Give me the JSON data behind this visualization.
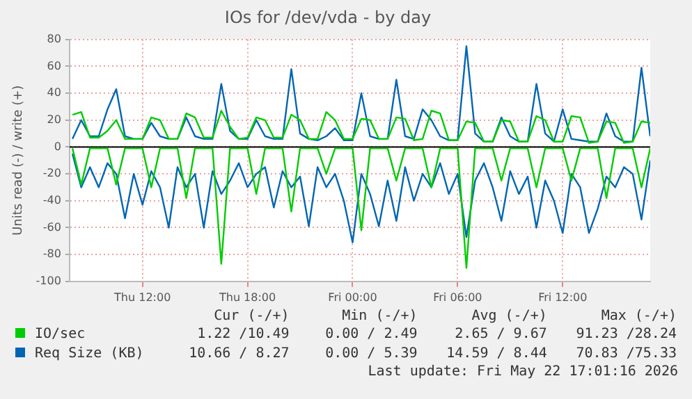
{
  "chart_data": {
    "type": "line",
    "title": "IOs for /dev/vda - by day",
    "ylabel": "Units read (-) / write (+)",
    "x": [
      "2026-05-21T08:00",
      "2026-05-21T08:30",
      "2026-05-21T09:00",
      "2026-05-21T09:30",
      "2026-05-21T10:00",
      "2026-05-21T10:30",
      "2026-05-21T11:00",
      "2026-05-21T11:30",
      "2026-05-21T12:00",
      "2026-05-21T12:30",
      "2026-05-21T13:00",
      "2026-05-21T13:30",
      "2026-05-21T14:00",
      "2026-05-21T14:30",
      "2026-05-21T15:00",
      "2026-05-21T15:30",
      "2026-05-21T16:00",
      "2026-05-21T16:30",
      "2026-05-21T17:00",
      "2026-05-21T17:30",
      "2026-05-21T18:00",
      "2026-05-21T18:30",
      "2026-05-21T19:00",
      "2026-05-21T19:30",
      "2026-05-21T20:00",
      "2026-05-21T20:30",
      "2026-05-21T21:00",
      "2026-05-21T21:30",
      "2026-05-21T22:00",
      "2026-05-21T22:30",
      "2026-05-21T23:00",
      "2026-05-21T23:30",
      "2026-05-22T00:00",
      "2026-05-22T00:30",
      "2026-05-22T01:00",
      "2026-05-22T01:30",
      "2026-05-22T02:00",
      "2026-05-22T02:30",
      "2026-05-22T03:00",
      "2026-05-22T03:30",
      "2026-05-22T04:00",
      "2026-05-22T04:30",
      "2026-05-22T05:00",
      "2026-05-22T05:30",
      "2026-05-22T06:00",
      "2026-05-22T06:30",
      "2026-05-22T07:00",
      "2026-05-22T07:30",
      "2026-05-22T08:00",
      "2026-05-22T08:30",
      "2026-05-22T09:00",
      "2026-05-22T09:30",
      "2026-05-22T10:00",
      "2026-05-22T10:30",
      "2026-05-22T11:00",
      "2026-05-22T11:30",
      "2026-05-22T12:00",
      "2026-05-22T12:30",
      "2026-05-22T13:00",
      "2026-05-22T13:30",
      "2026-05-22T14:00",
      "2026-05-22T14:30",
      "2026-05-22T15:00",
      "2026-05-22T15:30",
      "2026-05-22T16:00",
      "2026-05-22T16:30",
      "2026-05-22T17:00"
    ],
    "xlim": [
      "2026-05-21T07:50",
      "2026-05-22T17:00"
    ],
    "xticks": [
      {
        "value": "2026-05-21T12:00",
        "label": "Thu 12:00"
      },
      {
        "value": "2026-05-21T18:00",
        "label": "Thu 18:00"
      },
      {
        "value": "2026-05-22T00:00",
        "label": "Fri 00:00"
      },
      {
        "value": "2026-05-22T06:00",
        "label": "Fri 06:00"
      },
      {
        "value": "2026-05-22T12:00",
        "label": "Fri 12:00"
      }
    ],
    "ylim": [
      -100,
      80
    ],
    "yticks": [
      -100,
      -80,
      -60,
      -40,
      -20,
      0,
      20,
      40,
      60,
      80
    ],
    "grid": true,
    "legend": "bottom",
    "ref_lines": [
      {
        "axis": "y",
        "value": 0,
        "color": "#000000"
      }
    ],
    "series": [
      {
        "name": "IO/sec",
        "color": "#00cc00",
        "values": [
          24,
          26,
          7,
          7,
          12,
          20,
          6,
          6,
          6,
          22,
          20,
          6,
          6,
          25,
          22,
          7,
          7,
          27,
          15,
          6,
          7,
          22,
          20,
          7,
          7,
          24,
          20,
          6,
          6,
          26,
          20,
          6,
          6,
          21,
          20,
          6,
          6,
          22,
          21,
          5,
          6,
          27,
          25,
          5,
          5,
          19,
          18,
          4,
          4,
          20,
          19,
          4,
          4,
          23,
          20,
          4,
          4,
          23,
          22,
          3,
          4,
          19,
          18,
          3,
          4,
          19,
          18
        ]
      },
      {
        "color": "#00cc00",
        "values": [
          -1,
          -28,
          -1,
          -1,
          -1,
          -28,
          -1,
          -1,
          -1,
          -30,
          -1,
          -1,
          -1,
          -38,
          -1,
          -1,
          -1,
          -87,
          -1,
          -1,
          -1,
          -35,
          -1,
          -1,
          -1,
          -48,
          -1,
          -1,
          -1,
          -20,
          -1,
          -1,
          -1,
          -62,
          -1,
          -1,
          -1,
          -25,
          -1,
          -1,
          -1,
          -30,
          -1,
          -1,
          -1,
          -90,
          -1,
          -1,
          -1,
          -25,
          -1,
          -1,
          -1,
          -30,
          -1,
          -1,
          -1,
          -25,
          -1,
          -1,
          -1,
          -38,
          -1,
          -1,
          -1,
          -30,
          -1
        ]
      },
      {
        "name": "Req Size (KB)",
        "color": "#0066b3",
        "values": [
          6,
          20,
          8,
          8,
          28,
          43,
          8,
          6,
          6,
          18,
          8,
          6,
          6,
          22,
          8,
          6,
          6,
          47,
          12,
          6,
          6,
          20,
          8,
          6,
          6,
          58,
          10,
          6,
          5,
          8,
          14,
          5,
          5,
          40,
          8,
          6,
          6,
          50,
          8,
          6,
          28,
          20,
          8,
          5,
          5,
          75,
          10,
          4,
          4,
          22,
          8,
          4,
          4,
          47,
          10,
          4,
          28,
          6,
          5,
          4,
          4,
          25,
          8,
          4,
          4,
          59,
          8
        ]
      },
      {
        "color": "#0066b3",
        "values": [
          -5,
          -30,
          -15,
          -30,
          -12,
          -20,
          -53,
          -20,
          -43,
          -18,
          -30,
          -60,
          -15,
          -30,
          -20,
          -60,
          -18,
          -35,
          -25,
          -12,
          -30,
          -20,
          -15,
          -45,
          -18,
          -30,
          -22,
          -59,
          -15,
          -30,
          -20,
          -40,
          -71,
          -20,
          -35,
          -59,
          -25,
          -55,
          -15,
          -40,
          -20,
          -30,
          -12,
          -35,
          -20,
          -67,
          -25,
          -12,
          -30,
          -55,
          -18,
          -35,
          -22,
          -60,
          -25,
          -40,
          -64,
          -20,
          -30,
          -64,
          -46,
          -22,
          -30,
          -15,
          -20,
          -54,
          -10
        ]
      }
    ],
    "annotations": [
      "Cur (-/+)",
      "Min (-/+)",
      "Avg (-/+)",
      "Max (-/+)",
      "1.22 /10.49",
      "0.00 / 2.49",
      "2.65 / 9.67",
      "91.23 /28.24",
      "10.66 / 8.27",
      "0.00 / 5.39",
      "14.59 / 8.44",
      "70.83 /75.33",
      "Last update: Fri May 22 17:01:16 2026"
    ]
  }
}
